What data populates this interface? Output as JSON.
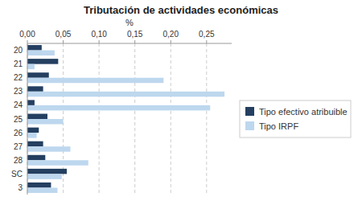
{
  "chart_data": {
    "type": "bar",
    "orientation": "horizontal",
    "title": "Tributación de actividades económicas",
    "xlabel": "%",
    "categories": [
      "20",
      "21",
      "22",
      "23",
      "24",
      "25",
      "26",
      "27",
      "28",
      "SC",
      "3"
    ],
    "series": [
      {
        "name": "Tipo efectivo atribuible",
        "color": "#243F60",
        "values": [
          0.02,
          0.043,
          0.03,
          0.022,
          0.01,
          0.028,
          0.016,
          0.022,
          0.025,
          0.055,
          0.033
        ]
      },
      {
        "name": "Tipo IRPF",
        "color": "#BDD7EE",
        "values": [
          0.038,
          0.01,
          0.19,
          0.275,
          0.255,
          0.05,
          0.013,
          0.06,
          0.085,
          0.048,
          0.042
        ]
      }
    ],
    "xlim": [
      0,
      0.285
    ],
    "xticks": [
      {
        "value": 0.0,
        "label": "0,00"
      },
      {
        "value": 0.05,
        "label": "0,05"
      },
      {
        "value": 0.1,
        "label": "0,10"
      },
      {
        "value": 0.15,
        "label": "0,15"
      },
      {
        "value": 0.2,
        "label": "0,20"
      },
      {
        "value": 0.25,
        "label": "0,25"
      }
    ],
    "grid": true,
    "legend": "right"
  }
}
